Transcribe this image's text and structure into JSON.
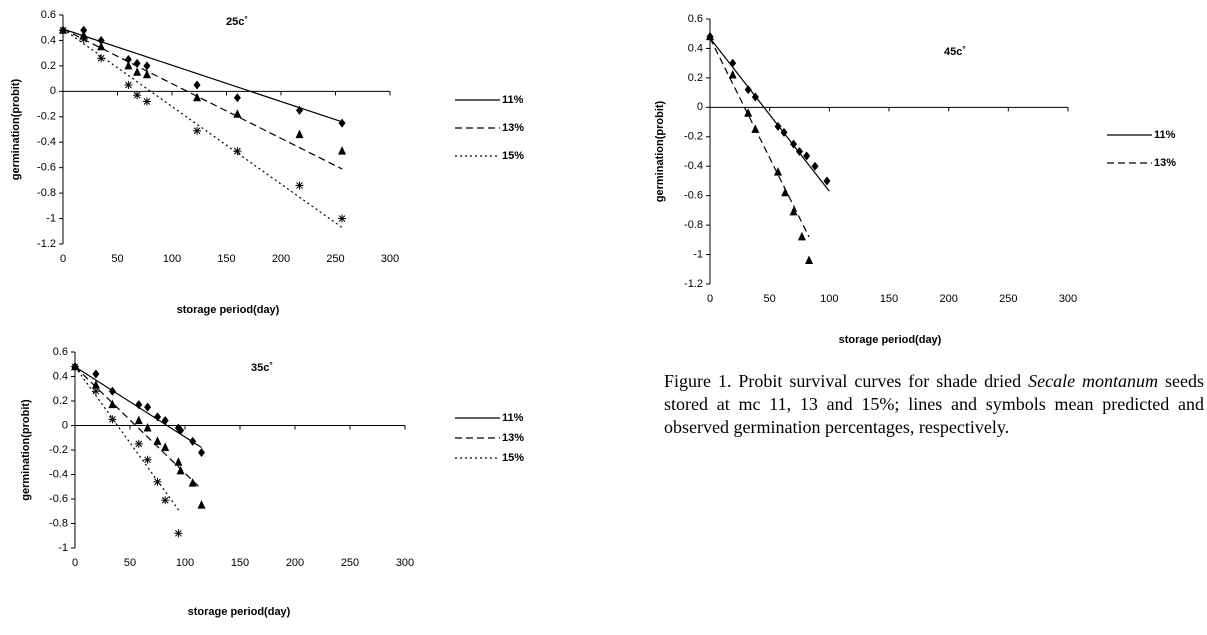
{
  "chart_data": [
    {
      "type": "scatter",
      "title": "25c˚",
      "x_label": "storage period(day)",
      "y_label": "germination(probit)",
      "xlim": [
        0,
        300
      ],
      "xticks": [
        0,
        50,
        100,
        150,
        200,
        250,
        300
      ],
      "ylim": [
        -1.2,
        0.6
      ],
      "yticks": [
        -1.2,
        -1,
        -0.8,
        -0.6,
        -0.4,
        -0.2,
        0,
        0.2,
        0.4,
        0.6
      ],
      "series": [
        {
          "name": "11%",
          "color": "#000000",
          "marker": "diamond",
          "linestyle": "solid",
          "x": [
            0,
            19,
            35,
            60,
            68,
            77,
            123,
            160,
            217,
            256
          ],
          "y": [
            0.48,
            0.48,
            0.4,
            0.25,
            0.22,
            0.2,
            0.05,
            -0.05,
            -0.15,
            -0.25
          ],
          "fit_x": [
            0,
            256
          ],
          "fit_y": [
            0.49,
            -0.24
          ]
        },
        {
          "name": "13%",
          "color": "#000000",
          "marker": "triangle",
          "linestyle": "dashed",
          "x": [
            0,
            19,
            35,
            60,
            68,
            77,
            123,
            160,
            217,
            256
          ],
          "y": [
            0.48,
            0.44,
            0.35,
            0.2,
            0.15,
            0.13,
            -0.05,
            -0.18,
            -0.34,
            -0.47
          ],
          "fit_x": [
            0,
            256
          ],
          "fit_y": [
            0.49,
            -0.61
          ]
        },
        {
          "name": "15%",
          "color": "#000000",
          "marker": "asterisk",
          "linestyle": "dotted",
          "x": [
            0,
            19,
            35,
            60,
            68,
            77,
            123,
            160,
            217,
            256
          ],
          "y": [
            0.48,
            0.41,
            0.26,
            0.05,
            -0.03,
            -0.08,
            -0.31,
            -0.47,
            -0.74,
            -1.0
          ],
          "fit_x": [
            0,
            256
          ],
          "fit_y": [
            0.49,
            -1.07
          ]
        }
      ]
    },
    {
      "type": "scatter",
      "title": "45c˚",
      "x_label": "storage period(day)",
      "y_label": "germination(probit)",
      "xlim": [
        0,
        300
      ],
      "xticks": [
        0,
        50,
        100,
        150,
        200,
        250,
        300
      ],
      "ylim": [
        -1.2,
        0.6
      ],
      "yticks": [
        -1.2,
        -1,
        -0.8,
        -0.6,
        -0.4,
        -0.2,
        0,
        0.2,
        0.4,
        0.6
      ],
      "series": [
        {
          "name": "11%",
          "color": "#000000",
          "marker": "diamond",
          "linestyle": "solid",
          "x": [
            0,
            19,
            32,
            38,
            57,
            62,
            70,
            75,
            81,
            88,
            98
          ],
          "y": [
            0.48,
            0.3,
            0.12,
            0.07,
            -0.13,
            -0.17,
            -0.25,
            -0.3,
            -0.33,
            -0.4,
            -0.5
          ],
          "fit_x": [
            0,
            100
          ],
          "fit_y": [
            0.47,
            -0.57
          ]
        },
        {
          "name": "13%",
          "color": "#000000",
          "marker": "triangle",
          "linestyle": "dashed",
          "x": [
            0,
            19,
            32,
            38,
            57,
            63,
            70,
            77,
            83
          ],
          "y": [
            0.48,
            0.22,
            -0.04,
            -0.15,
            -0.44,
            -0.58,
            -0.71,
            -0.88,
            -1.04
          ],
          "fit_x": [
            0,
            83
          ],
          "fit_y": [
            0.47,
            -0.88
          ]
        }
      ]
    },
    {
      "type": "scatter",
      "title": "35c˚",
      "x_label": "storage period(day)",
      "y_label": "germination(probit)",
      "xlim": [
        0,
        300
      ],
      "xticks": [
        0,
        50,
        100,
        150,
        200,
        250,
        300
      ],
      "ylim": [
        -1,
        0.6
      ],
      "yticks": [
        -1,
        -0.8,
        -0.6,
        -0.4,
        -0.2,
        0,
        0.2,
        0.4,
        0.6
      ],
      "series": [
        {
          "name": "11%",
          "color": "#000000",
          "marker": "diamond",
          "linestyle": "solid",
          "x": [
            0,
            19,
            34,
            58,
            66,
            75,
            82,
            94,
            96,
            107,
            115
          ],
          "y": [
            0.48,
            0.42,
            0.28,
            0.17,
            0.15,
            0.07,
            0.04,
            -0.02,
            -0.04,
            -0.13,
            -0.22
          ],
          "fit_x": [
            0,
            115
          ],
          "fit_y": [
            0.48,
            -0.18
          ]
        },
        {
          "name": "13%",
          "color": "#000000",
          "marker": "triangle",
          "linestyle": "dashed",
          "x": [
            0,
            19,
            34,
            58,
            66,
            75,
            82,
            94,
            96,
            107,
            115
          ],
          "y": [
            0.48,
            0.33,
            0.17,
            0.04,
            -0.02,
            -0.13,
            -0.18,
            -0.3,
            -0.37,
            -0.47,
            -0.65
          ],
          "fit_x": [
            0,
            115
          ],
          "fit_y": [
            0.48,
            -0.52
          ]
        },
        {
          "name": "15%",
          "color": "#000000",
          "marker": "asterisk",
          "linestyle": "dotted",
          "x": [
            0,
            19,
            34,
            58,
            66,
            75,
            82,
            94
          ],
          "y": [
            0.48,
            0.28,
            0.05,
            -0.15,
            -0.28,
            -0.46,
            -0.61,
            -0.88
          ],
          "fit_x": [
            0,
            95
          ],
          "fit_y": [
            0.48,
            -0.7
          ]
        }
      ]
    }
  ],
  "caption": [
    "Figure 1. Probit survival curves for shade dried ",
    "Secale montanum",
    " seeds stored at mc 11, 13 and 15%; lines and symbols mean predicted and observed germination percentages, respectively."
  ]
}
